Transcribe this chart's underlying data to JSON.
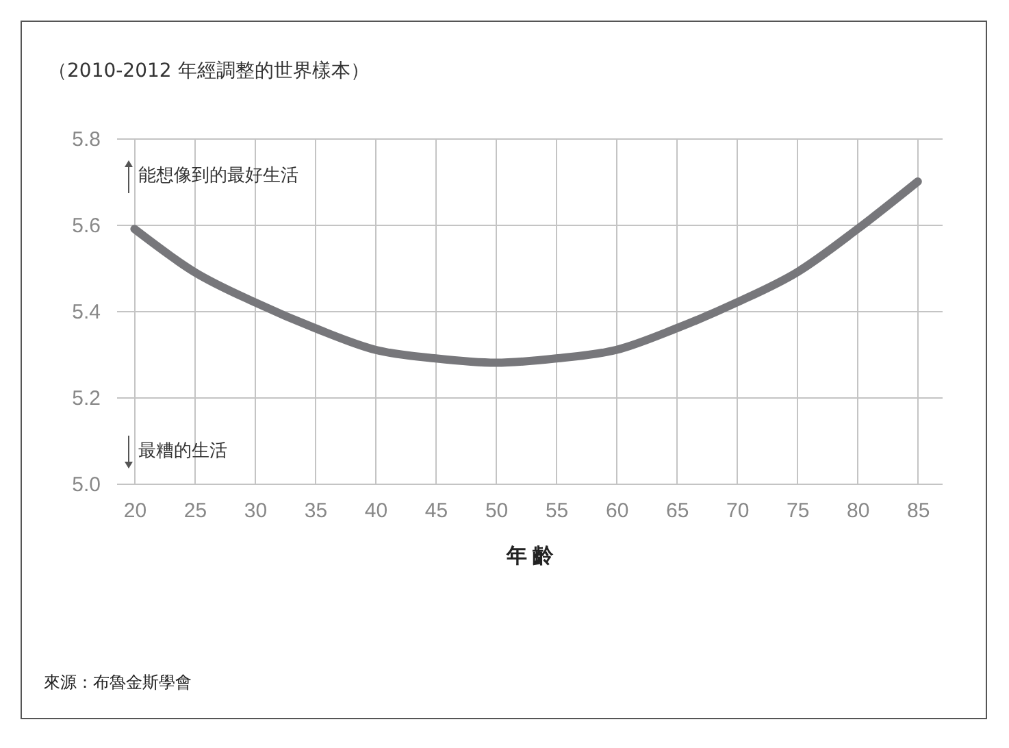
{
  "chart_data": {
    "type": "line",
    "title": "（2010-2012 年經調整的世界樣本）",
    "xlabel": "年 齡",
    "annotations": [
      "能想像到的最好生活",
      "最糟的生活",
      "來源：布魯金斯學會"
    ],
    "x": [
      20,
      25,
      30,
      35,
      40,
      45,
      50,
      55,
      60,
      65,
      70,
      75,
      80,
      85
    ],
    "series": [
      {
        "color": "#77777b",
        "values": [
          5.59,
          5.49,
          5.42,
          5.36,
          5.31,
          5.29,
          5.28,
          5.29,
          5.31,
          5.36,
          5.42,
          5.49,
          5.59,
          5.7
        ]
      }
    ],
    "xlim": [
      18.5,
      87
    ],
    "xticks": [
      20,
      25,
      30,
      35,
      40,
      45,
      50,
      55,
      60,
      65,
      70,
      75,
      80,
      85
    ],
    "ylim": [
      5.0,
      5.8
    ],
    "yticks": [
      {
        "value": 5.0,
        "label": "5.0"
      },
      5.2,
      5.4,
      5.6,
      5.8
    ],
    "grid": true,
    "legend": false,
    "marker": "none",
    "line_style": "solid"
  }
}
